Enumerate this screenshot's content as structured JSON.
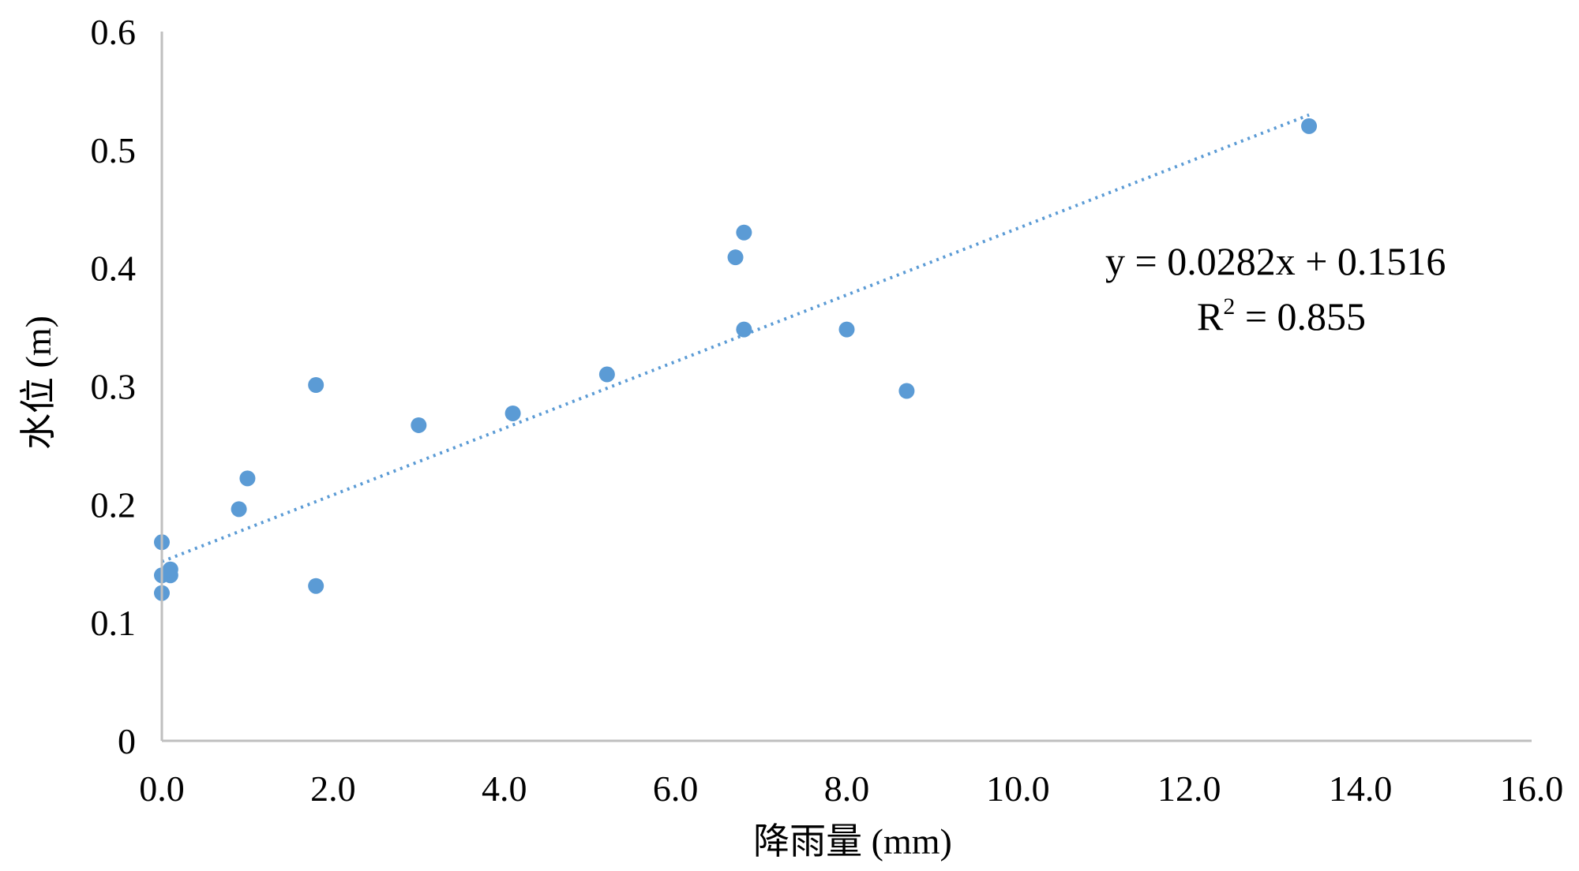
{
  "chart_data": {
    "type": "scatter",
    "xlabel": "降雨量 (mm)",
    "ylabel": "水位 (m)",
    "xlim": [
      0,
      16
    ],
    "ylim": [
      0,
      0.6
    ],
    "x_ticks": [
      "0.0",
      "2.0",
      "4.0",
      "6.0",
      "8.0",
      "10.0",
      "12.0",
      "14.0",
      "16.0"
    ],
    "y_ticks": [
      "0",
      "0.1",
      "0.2",
      "0.3",
      "0.4",
      "0.5",
      "0.6"
    ],
    "grid": false,
    "marker_color": "#5b9bd5",
    "trendline_color": "#5b9bd5",
    "series": [
      {
        "x": [
          0.0,
          0.0,
          0.0,
          0.1,
          0.1,
          0.9,
          1.0,
          1.8,
          1.8,
          3.0,
          4.1,
          5.2,
          6.7,
          6.8,
          6.8,
          8.0,
          8.7,
          13.4
        ],
        "y": [
          0.168,
          0.14,
          0.125,
          0.14,
          0.145,
          0.196,
          0.222,
          0.301,
          0.131,
          0.267,
          0.277,
          0.31,
          0.409,
          0.43,
          0.348,
          0.348,
          0.296,
          0.52
        ]
      }
    ],
    "trendline": {
      "type": "linear",
      "slope": 0.0282,
      "intercept": 0.1516,
      "x_range": [
        0,
        13.4
      ]
    },
    "annotations": {
      "equation": "y = 0.0282x + 0.1516",
      "r2_prefix": "R",
      "r2_sup": "2",
      "r2_rest": " = 0.855"
    }
  }
}
